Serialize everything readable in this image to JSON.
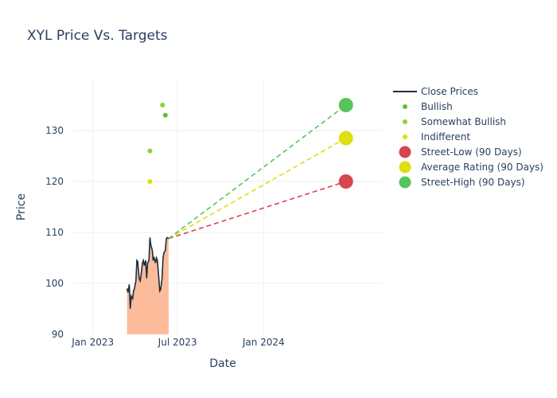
{
  "chart_data": {
    "type": "line",
    "title": "XYL Price Vs. Targets",
    "xlabel": "Date",
    "ylabel": "Price",
    "xlim": [
      "2022-11-20",
      "2024-09-10"
    ],
    "ylim": [
      90,
      140
    ],
    "x_ticks": [
      {
        "date": "2023-01-01",
        "label": "Jan 2023"
      },
      {
        "date": "2023-07-01",
        "label": "Jul 2023"
      },
      {
        "date": "2024-01-01",
        "label": "Jan 2024"
      }
    ],
    "y_ticks": [
      90,
      100,
      110,
      120,
      130
    ],
    "close_prices": {
      "name": "Close Prices",
      "color": "#1f2d3d",
      "fill_color": "#fcbb9b",
      "dates": [
        "2023-03-15",
        "2023-03-17",
        "2023-03-20",
        "2023-03-22",
        "2023-03-24",
        "2023-03-27",
        "2023-03-29",
        "2023-03-31",
        "2023-04-03",
        "2023-04-05",
        "2023-04-07",
        "2023-04-10",
        "2023-04-12",
        "2023-04-14",
        "2023-04-17",
        "2023-04-19",
        "2023-04-21",
        "2023-04-24",
        "2023-04-26",
        "2023-04-28",
        "2023-05-01",
        "2023-05-03",
        "2023-05-05",
        "2023-05-08",
        "2023-05-10",
        "2023-05-12",
        "2023-05-15",
        "2023-05-17",
        "2023-05-19",
        "2023-05-22",
        "2023-05-24",
        "2023-05-26",
        "2023-05-29",
        "2023-05-31",
        "2023-06-02",
        "2023-06-05",
        "2023-06-07",
        "2023-06-09",
        "2023-06-12"
      ],
      "values": [
        99,
        98.2,
        99.8,
        95,
        97.5,
        97,
        98.5,
        99,
        100.5,
        104.5,
        104.3,
        101,
        100.5,
        101.5,
        104,
        104.5,
        103.5,
        104.5,
        101,
        104,
        104.5,
        109,
        107.5,
        106.5,
        104.5,
        105,
        104,
        105,
        104.5,
        101,
        98.5,
        98.8,
        101,
        105,
        106,
        106.5,
        108.8,
        109,
        108.8
      ]
    },
    "ratings": [
      {
        "name": "Bullish",
        "color": "#5cc13f",
        "points": [
          {
            "date": "2023-06-05",
            "value": 133
          }
        ]
      },
      {
        "name": "Somewhat Bullish",
        "color": "#8fd132",
        "points": [
          {
            "date": "2023-05-03",
            "value": 126
          },
          {
            "date": "2023-05-30",
            "value": 135
          }
        ]
      },
      {
        "name": "Indifferent",
        "color": "#dede10",
        "points": [
          {
            "date": "2023-05-03",
            "value": 120
          }
        ]
      }
    ],
    "targets": [
      {
        "name": "Street-Low (90 Days)",
        "color": "#d6464f",
        "from_date": "2023-06-12",
        "from_value": 108.8,
        "to_date": "2024-06-25",
        "to_value": 120
      },
      {
        "name": "Average Rating (90 Days)",
        "color": "#dede10",
        "from_date": "2023-06-12",
        "from_value": 108.8,
        "to_date": "2024-06-25",
        "to_value": 128.5
      },
      {
        "name": "Street-High (90 Days)",
        "color": "#55c55a",
        "from_date": "2023-06-12",
        "from_value": 108.8,
        "to_date": "2024-06-25",
        "to_value": 135
      }
    ],
    "legend_position": "right"
  }
}
